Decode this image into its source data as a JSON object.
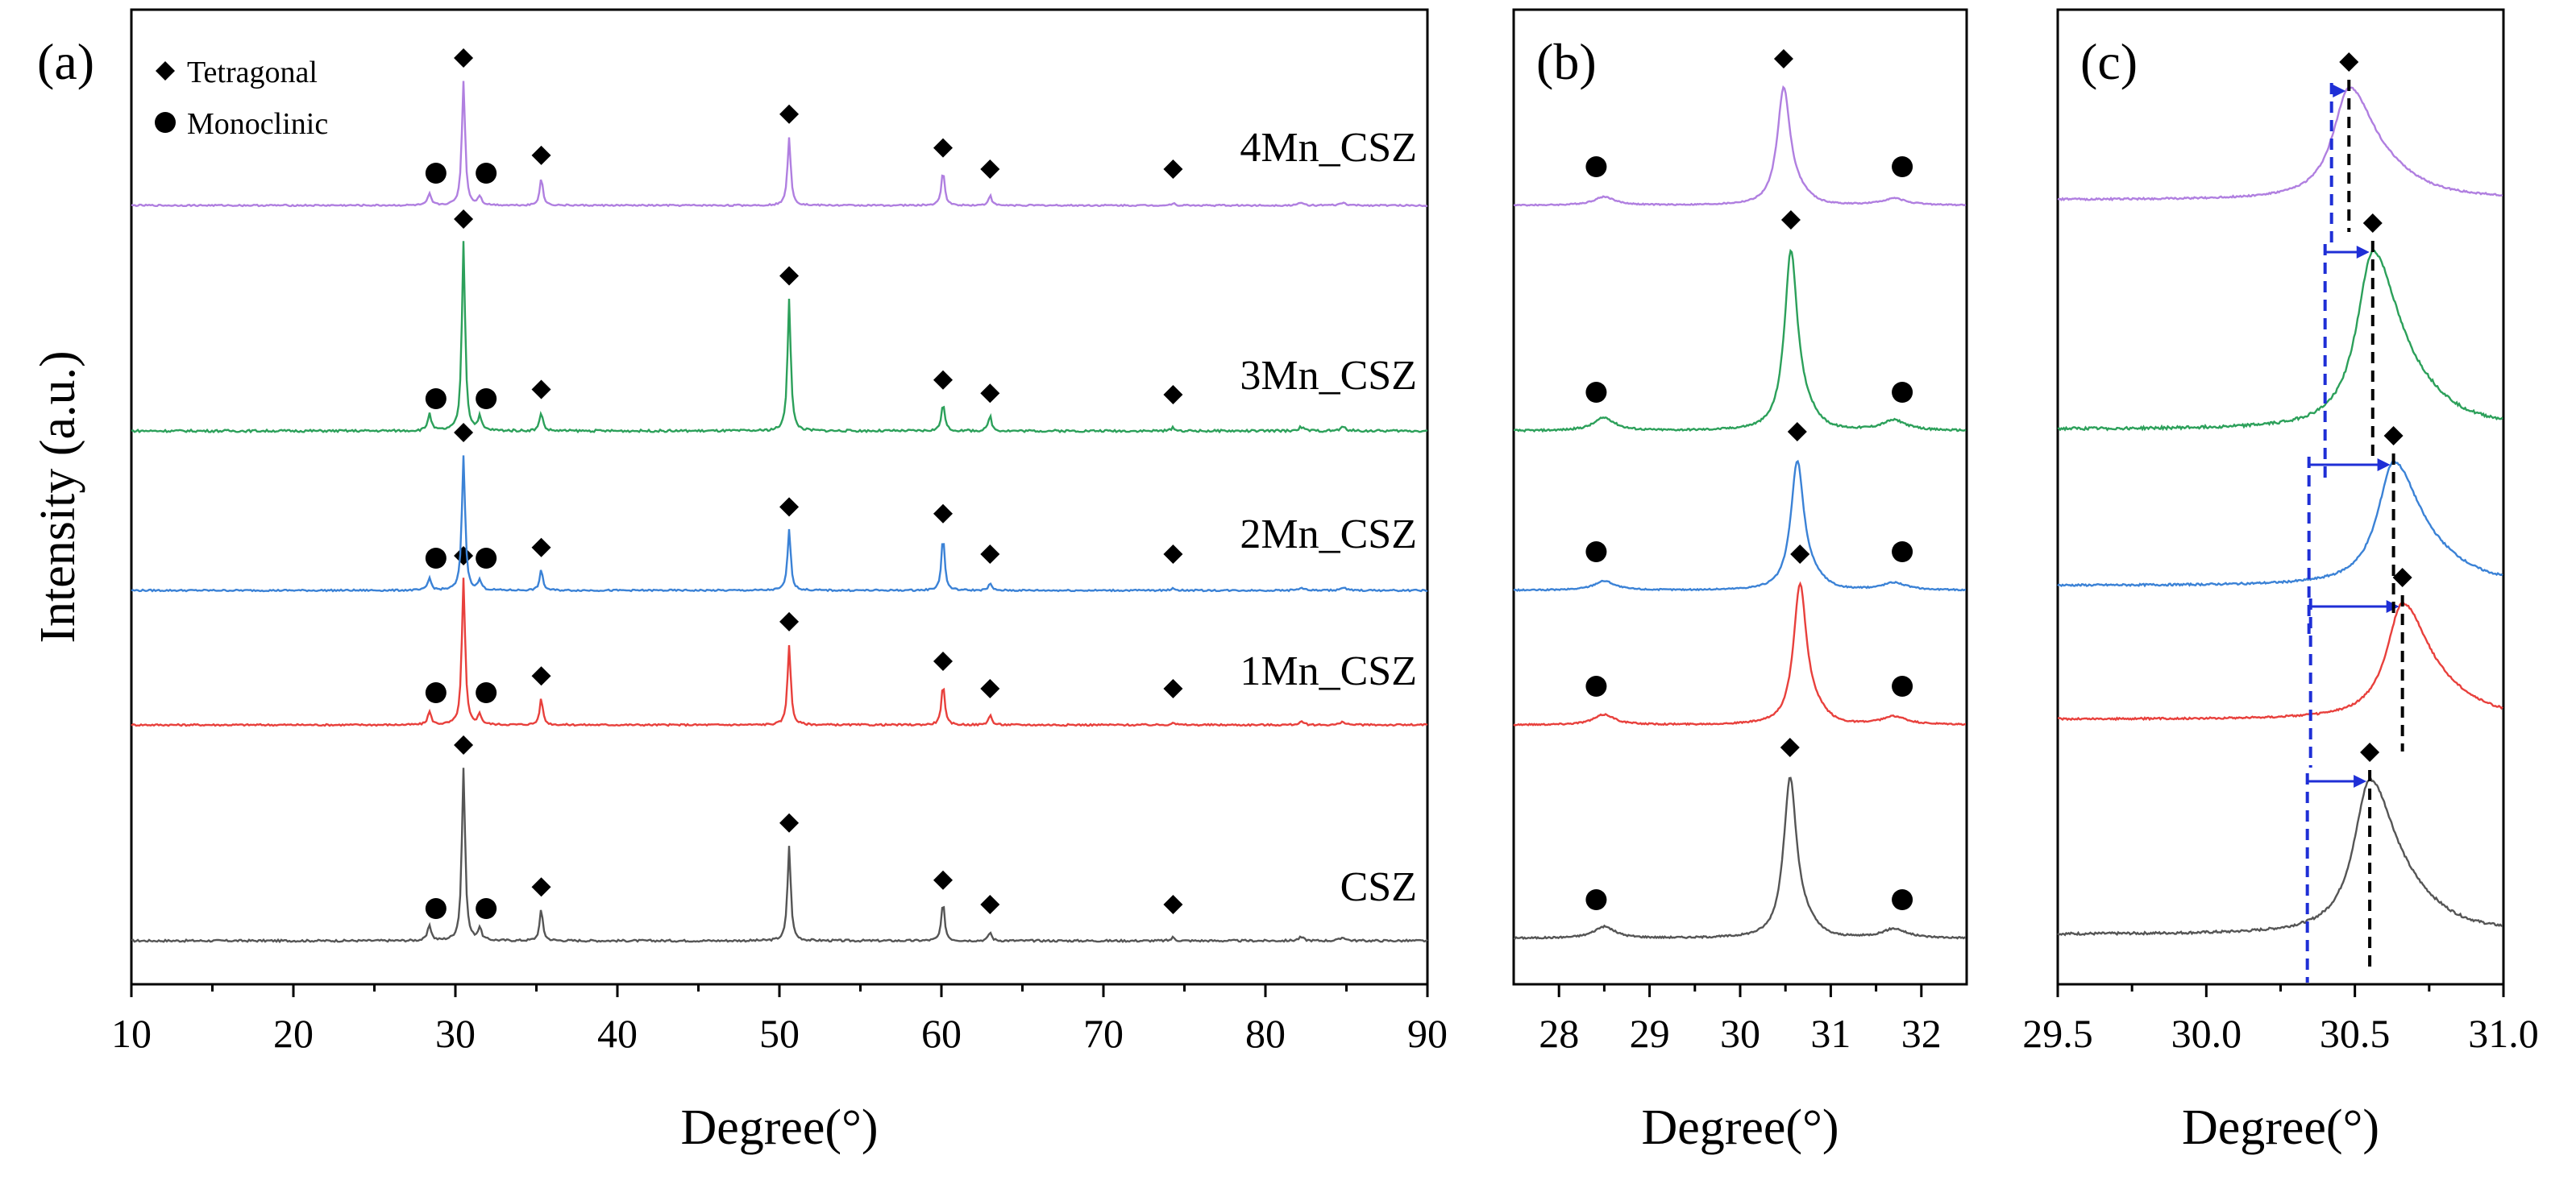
{
  "chart_data": {
    "type": "line",
    "title": "",
    "ylabel": "Intensity (a.u.)",
    "colors": {
      "CSZ": "#555555",
      "1Mn_CSZ": "#e8403c",
      "2Mn_CSZ": "#3b82d6",
      "3Mn_CSZ": "#2ca05a",
      "4Mn_CSZ": "#b07fe0"
    },
    "legend": [
      {
        "label": "Tetragonal",
        "marker": "diamond"
      },
      {
        "label": "Monoclinic",
        "marker": "circle"
      }
    ],
    "series": [
      {
        "name": "CSZ",
        "t_peak": 30.55
      },
      {
        "name": "1Mn_CSZ",
        "t_peak": 30.66
      },
      {
        "name": "2Mn_CSZ",
        "t_peak": 30.63
      },
      {
        "name": "3Mn_CSZ",
        "t_peak": 30.56
      },
      {
        "name": "4Mn_CSZ",
        "t_peak": 30.48
      }
    ],
    "panels": [
      {
        "id": "a",
        "label": "(a)",
        "xlabel": "Degree(°)",
        "xlim": [
          10,
          90
        ],
        "xticks": [
          10,
          20,
          30,
          40,
          50,
          60,
          70,
          80,
          90
        ],
        "xtick_labels": [
          "10",
          "20",
          "30",
          "40",
          "50",
          "60",
          "70",
          "80",
          "90"
        ],
        "tetragonal_peaks": [
          30.5,
          35.3,
          50.6,
          60.1,
          63.0,
          74.3
        ],
        "monoclinic_peaks": [
          28.4,
          31.5
        ],
        "minor_peaks": [
          82.2,
          84.8
        ],
        "peak_heights": {
          "CSZ": [
            1.0,
            0.18,
            0.55,
            0.22,
            0.05,
            0.02
          ],
          "1Mn_CSZ": [
            1.0,
            0.18,
            0.55,
            0.28,
            0.07,
            0.02
          ],
          "2Mn_CSZ": [
            1.0,
            0.15,
            0.45,
            0.4,
            0.05,
            0.02
          ],
          "3Mn_CSZ": [
            1.0,
            0.1,
            0.7,
            0.15,
            0.08,
            0.02
          ],
          "4Mn_CSZ": [
            1.0,
            0.22,
            0.55,
            0.28,
            0.08,
            0.02
          ]
        }
      },
      {
        "id": "b",
        "label": "(b)",
        "xlabel": "Degree(°)",
        "xlim": [
          27.5,
          32.5
        ],
        "xticks": [
          28,
          29,
          30,
          31,
          32
        ],
        "xtick_labels": [
          "28",
          "29",
          "30",
          "31",
          "32"
        ],
        "monoclinic_peaks": [
          28.5,
          31.7
        ]
      },
      {
        "id": "c",
        "label": "(c)",
        "xlabel": "Degree(°)",
        "xlim": [
          29.5,
          31.0
        ],
        "xticks": [
          29.5,
          30.0,
          30.5,
          31.0
        ],
        "xtick_labels": [
          "29.5",
          "30.0",
          "30.5",
          "31.0"
        ],
        "reference_line": 30.34
      }
    ]
  }
}
